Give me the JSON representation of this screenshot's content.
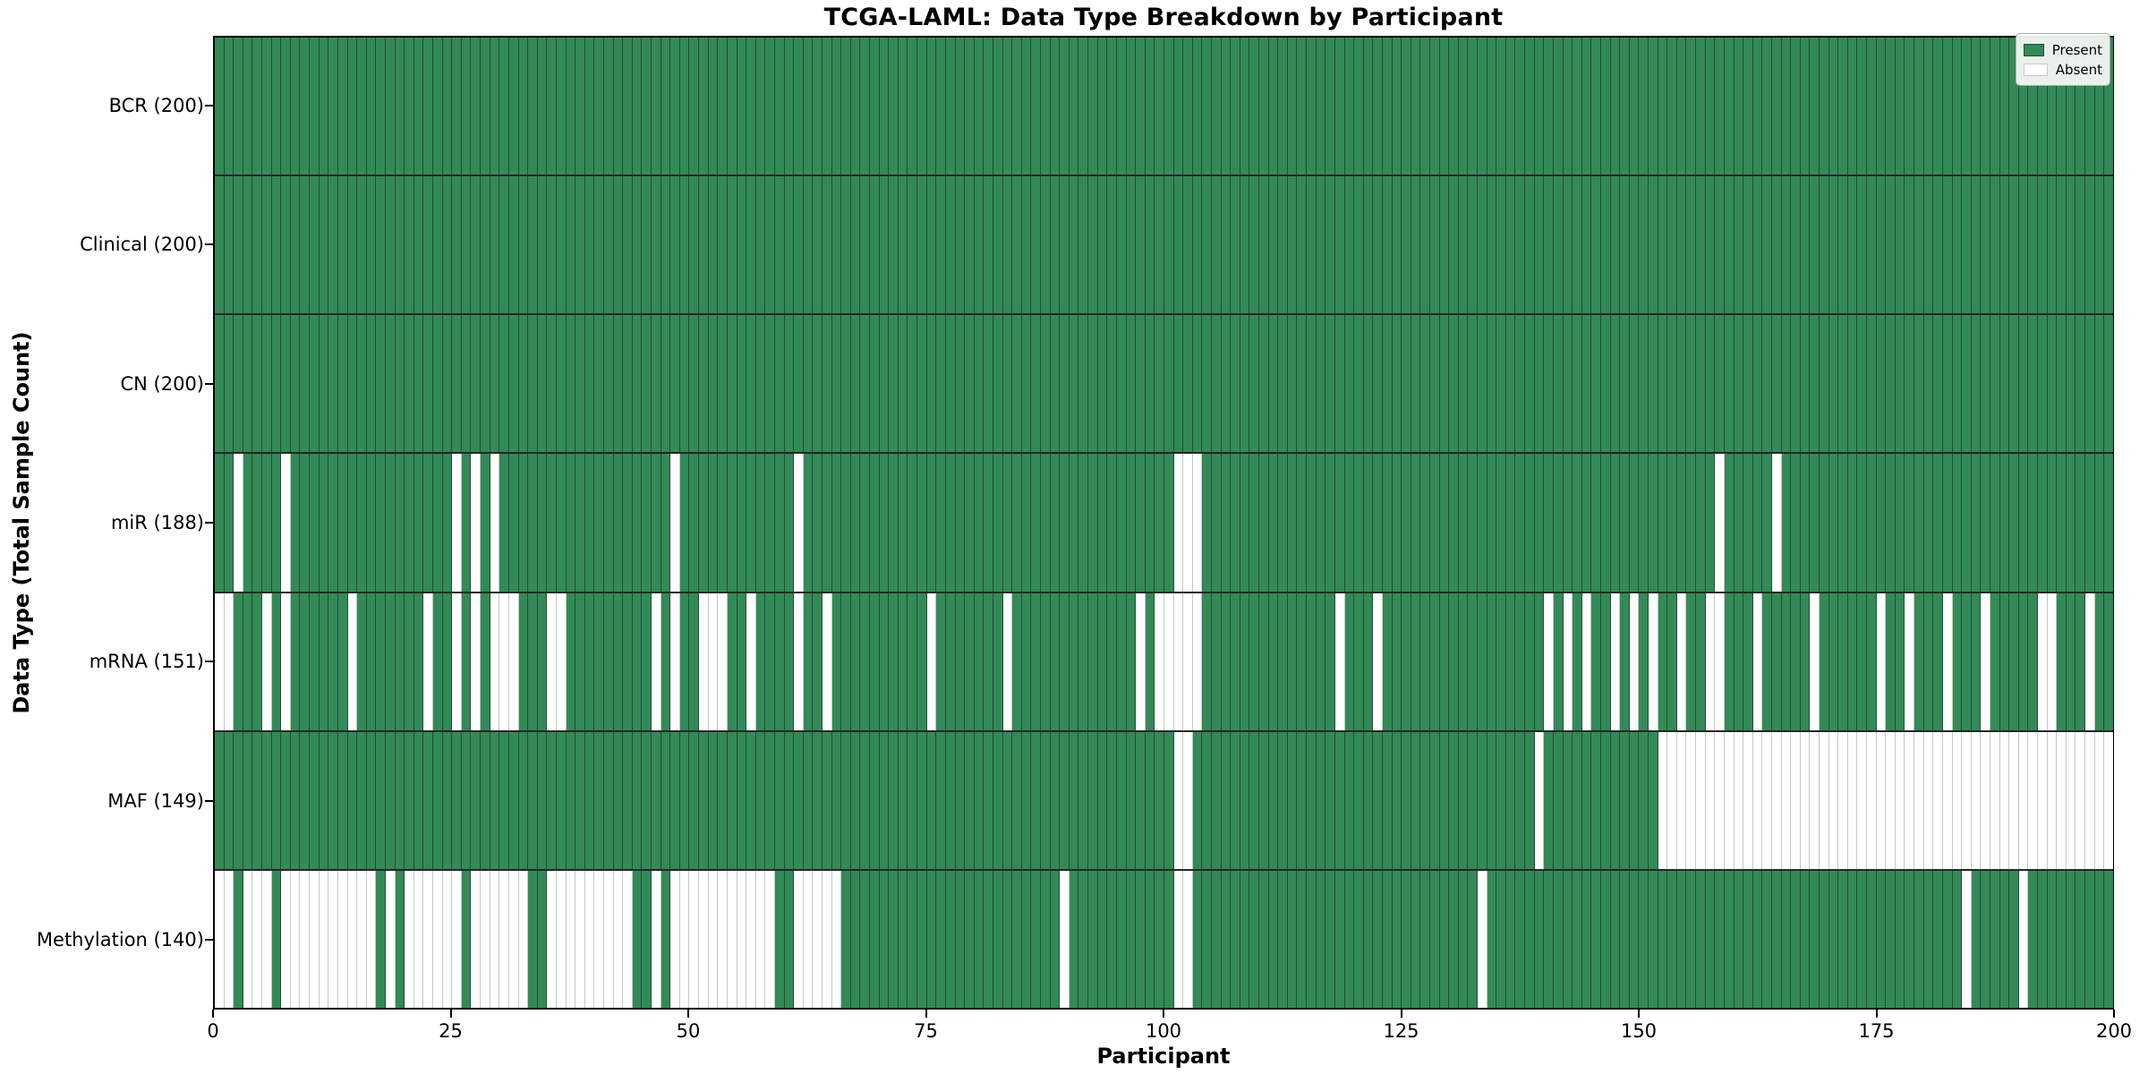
{
  "chart_data": {
    "type": "heatmap",
    "title": "TCGA-LAML: Data Type Breakdown by Participant",
    "xlabel": "Participant",
    "ylabel": "Data Type (Total Sample Count)",
    "x_range": [
      0,
      200
    ],
    "x_ticks": [
      0,
      25,
      50,
      75,
      100,
      125,
      150,
      175,
      200
    ],
    "n_participants": 200,
    "grid": "cell-edges-visible",
    "legend_position": "upper-right-inside",
    "colors": {
      "present": "#338a57",
      "present_edge": "#1d4f35",
      "absent": "#ffffff"
    },
    "legend": [
      {
        "label": "Present",
        "color": "#338a57"
      },
      {
        "label": "Absent",
        "color": "#ffffff"
      }
    ],
    "rows": [
      {
        "name": "bcr",
        "label": "BCR (200)",
        "data_type": "BCR",
        "present_count": 200,
        "absent": []
      },
      {
        "name": "clinical",
        "label": "Clinical (200)",
        "data_type": "Clinical",
        "present_count": 200,
        "absent": []
      },
      {
        "name": "cn",
        "label": "CN (200)",
        "data_type": "CN",
        "present_count": 200,
        "absent": []
      },
      {
        "name": "mir",
        "label": "miR (188)",
        "data_type": "miR",
        "present_count": 188,
        "absent": [
          2,
          7,
          25,
          27,
          29,
          48,
          61,
          101,
          102,
          103,
          158,
          164
        ]
      },
      {
        "name": "mrna",
        "label": "mRNA (151)",
        "data_type": "mRNA",
        "present_count": 151,
        "absent": [
          0,
          1,
          5,
          7,
          14,
          22,
          25,
          27,
          29,
          30,
          31,
          35,
          36,
          46,
          48,
          51,
          52,
          53,
          56,
          61,
          64,
          75,
          83,
          97,
          99,
          100,
          101,
          102,
          103,
          118,
          122,
          140,
          142,
          144,
          147,
          149,
          151,
          154,
          157,
          158,
          162,
          168,
          175,
          178,
          182,
          186,
          192,
          193,
          197
        ]
      },
      {
        "name": "maf",
        "label": "MAF (149)",
        "data_type": "MAF",
        "present_count": 149,
        "absent": [
          101,
          102,
          139,
          152,
          153,
          154,
          155,
          156,
          157,
          158,
          159,
          160,
          161,
          162,
          163,
          164,
          165,
          166,
          167,
          168,
          169,
          170,
          171,
          172,
          173,
          174,
          175,
          176,
          177,
          178,
          179,
          180,
          181,
          182,
          183,
          184,
          185,
          186,
          187,
          188,
          189,
          190,
          191,
          192,
          193,
          194,
          195,
          196,
          197,
          198,
          199
        ]
      },
      {
        "name": "methylation",
        "label": "Methylation (140)",
        "data_type": "Methylation",
        "present_count": 140,
        "absent": [
          0,
          1,
          3,
          4,
          5,
          7,
          8,
          9,
          10,
          11,
          12,
          13,
          14,
          15,
          16,
          18,
          20,
          21,
          22,
          23,
          24,
          25,
          27,
          28,
          29,
          30,
          31,
          32,
          35,
          36,
          37,
          38,
          39,
          40,
          41,
          42,
          43,
          46,
          48,
          49,
          50,
          51,
          52,
          53,
          54,
          55,
          56,
          57,
          58,
          61,
          62,
          63,
          64,
          65,
          89,
          101,
          102,
          133,
          184,
          190
        ]
      }
    ]
  }
}
